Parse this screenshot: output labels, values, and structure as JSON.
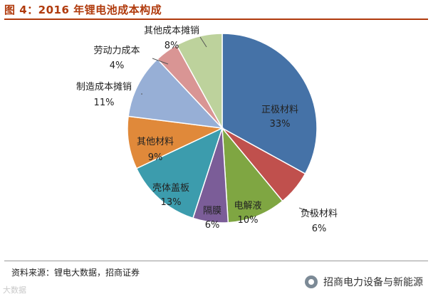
{
  "header": {
    "title": "图 4：2016 年锂电池成本构成"
  },
  "footer": {
    "source": "资料来源：锂电大数据，招商证券",
    "brand": "招商电力设备与新能源",
    "watermark": "大数据"
  },
  "chart_data": {
    "type": "pie",
    "title": "",
    "slices": [
      {
        "name": "正极材料",
        "value": 33,
        "label": "33%",
        "color": "#4572a7"
      },
      {
        "name": "负极材料",
        "value": 6,
        "label": "6%",
        "color": "#c0504d"
      },
      {
        "name": "电解液",
        "value": 10,
        "label": "10%",
        "color": "#7fa642"
      },
      {
        "name": "隔膜",
        "value": 6,
        "label": "6%",
        "color": "#7b5d98"
      },
      {
        "name": "壳体盖板",
        "value": 13,
        "label": "13%",
        "color": "#3c9cad"
      },
      {
        "name": "其他材料",
        "value": 9,
        "label": "9%",
        "color": "#e0893a"
      },
      {
        "name": "制造成本摊销",
        "value": 11,
        "label": "11%",
        "color": "#97afd6"
      },
      {
        "name": "劳动力成本",
        "value": 4,
        "label": "4%",
        "color": "#d99594"
      },
      {
        "name": "其他成本摊销",
        "value": 8,
        "label": "8%",
        "color": "#bdd29c"
      }
    ],
    "start_angle_deg": 0,
    "direction": "clockwise"
  }
}
